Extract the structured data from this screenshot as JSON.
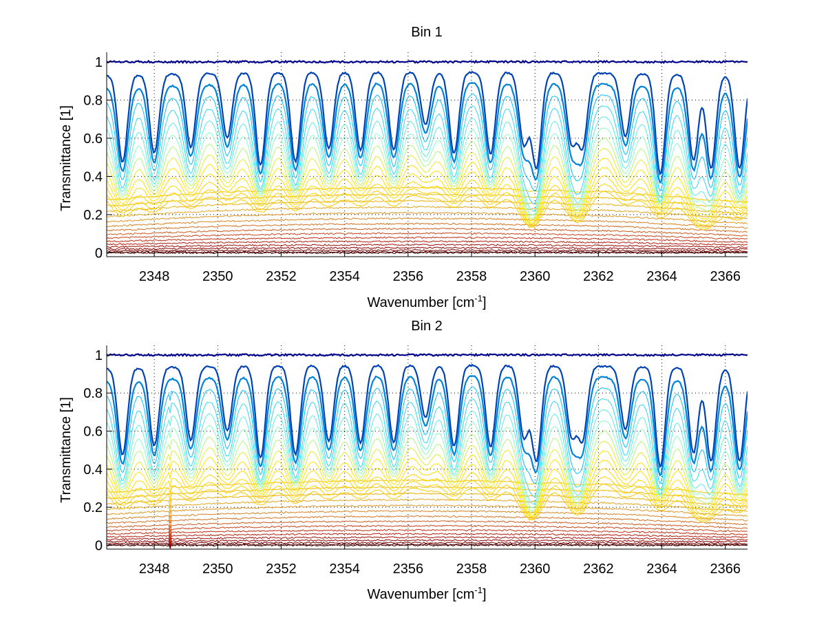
{
  "figure": {
    "background": "#ffffff"
  },
  "colors": {
    "axis": "#000000",
    "grid": "#000000",
    "low_to_high": [
      "#3d0000",
      "#8b0000",
      "#c1270e",
      "#d2691e",
      "#e0a020",
      "#f2c200",
      "#ffd400",
      "#ffe600",
      "#7fffd4",
      "#00bfff",
      "#00008b"
    ]
  },
  "chart_data": [
    {
      "type": "line",
      "title": "Bin 1",
      "xlabel_main": "Wavenumber [cm",
      "xlabel_sup": "-1",
      "xlabel_close": "]",
      "ylabel": "Transmittance [1]",
      "xlim": [
        2346.5,
        2366.7
      ],
      "ylim": [
        -0.02,
        1.05
      ],
      "xticks": [
        2348,
        2350,
        2352,
        2354,
        2356,
        2358,
        2360,
        2362,
        2364,
        2366
      ],
      "yticks": [
        0,
        0.2,
        0.4,
        0.6,
        0.8,
        1
      ],
      "ytick_labels": [
        "0",
        "0.2",
        "0.4",
        "0.6",
        "0.8",
        "1"
      ],
      "grid": true,
      "legend": "none",
      "line_centers": [
        2347.0,
        2348.0,
        2349.15,
        2350.3,
        2351.35,
        2352.45,
        2353.5,
        2354.5,
        2355.55,
        2356.55,
        2357.45,
        2358.6,
        2359.65,
        2360.05,
        2361.15,
        2361.5,
        2362.85,
        2363.95,
        2365.0,
        2365.55,
        2366.45
      ],
      "series_count": 30,
      "edge_level": 0.35
    },
    {
      "type": "line",
      "title": "Bin 2",
      "xlabel_main": "Wavenumber [cm",
      "xlabel_sup": "-1",
      "xlabel_close": "]",
      "ylabel": "Transmittance [1]",
      "xlim": [
        2346.5,
        2366.7
      ],
      "ylim": [
        -0.02,
        1.05
      ],
      "xticks": [
        2348,
        2350,
        2352,
        2354,
        2356,
        2358,
        2360,
        2362,
        2364,
        2366
      ],
      "yticks": [
        0,
        0.2,
        0.4,
        0.6,
        0.8,
        1
      ],
      "ytick_labels": [
        "0",
        "0.2",
        "0.4",
        "0.6",
        "0.8",
        "1"
      ],
      "grid": true,
      "legend": "none",
      "line_centers": [
        2347.0,
        2348.0,
        2349.15,
        2350.3,
        2351.35,
        2352.45,
        2353.5,
        2354.5,
        2355.55,
        2356.55,
        2357.45,
        2358.6,
        2359.65,
        2360.05,
        2361.15,
        2361.5,
        2362.85,
        2363.95,
        2365.0,
        2365.55,
        2366.45
      ],
      "spike_x": 2348.5,
      "series_count": 30,
      "edge_level": 0.35
    }
  ]
}
